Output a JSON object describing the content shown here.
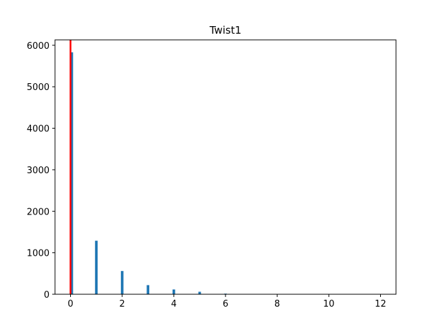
{
  "chart_data": {
    "type": "bar",
    "title": "Twist1",
    "xlabel": "",
    "ylabel": "",
    "xlim": [
      -0.6,
      12.6
    ],
    "ylim": [
      0,
      6130
    ],
    "x_ticks": [
      0,
      2,
      4,
      6,
      8,
      10,
      12
    ],
    "y_ticks": [
      0,
      1000,
      2000,
      3000,
      4000,
      5000,
      6000
    ],
    "grid": false,
    "legend": "none",
    "bar_color": "#1f77b4",
    "bar_width": 0.1,
    "bars": [
      {
        "x": 0.05,
        "value": 5830
      },
      {
        "x": 1.0,
        "value": 1290
      },
      {
        "x": 2.0,
        "value": 560
      },
      {
        "x": 3.0,
        "value": 220
      },
      {
        "x": 4.0,
        "value": 115
      },
      {
        "x": 5.0,
        "value": 60
      },
      {
        "x": 6.0,
        "value": 15
      },
      {
        "x": 7.0,
        "value": 4
      },
      {
        "x": 8.0,
        "value": 2
      },
      {
        "x": 9.0,
        "value": 1
      },
      {
        "x": 10.0,
        "value": 1
      },
      {
        "x": 11.0,
        "value": 1
      },
      {
        "x": 12.0,
        "value": 1
      }
    ],
    "reference_line": {
      "x": 0.0,
      "color": "#ff0000"
    }
  }
}
